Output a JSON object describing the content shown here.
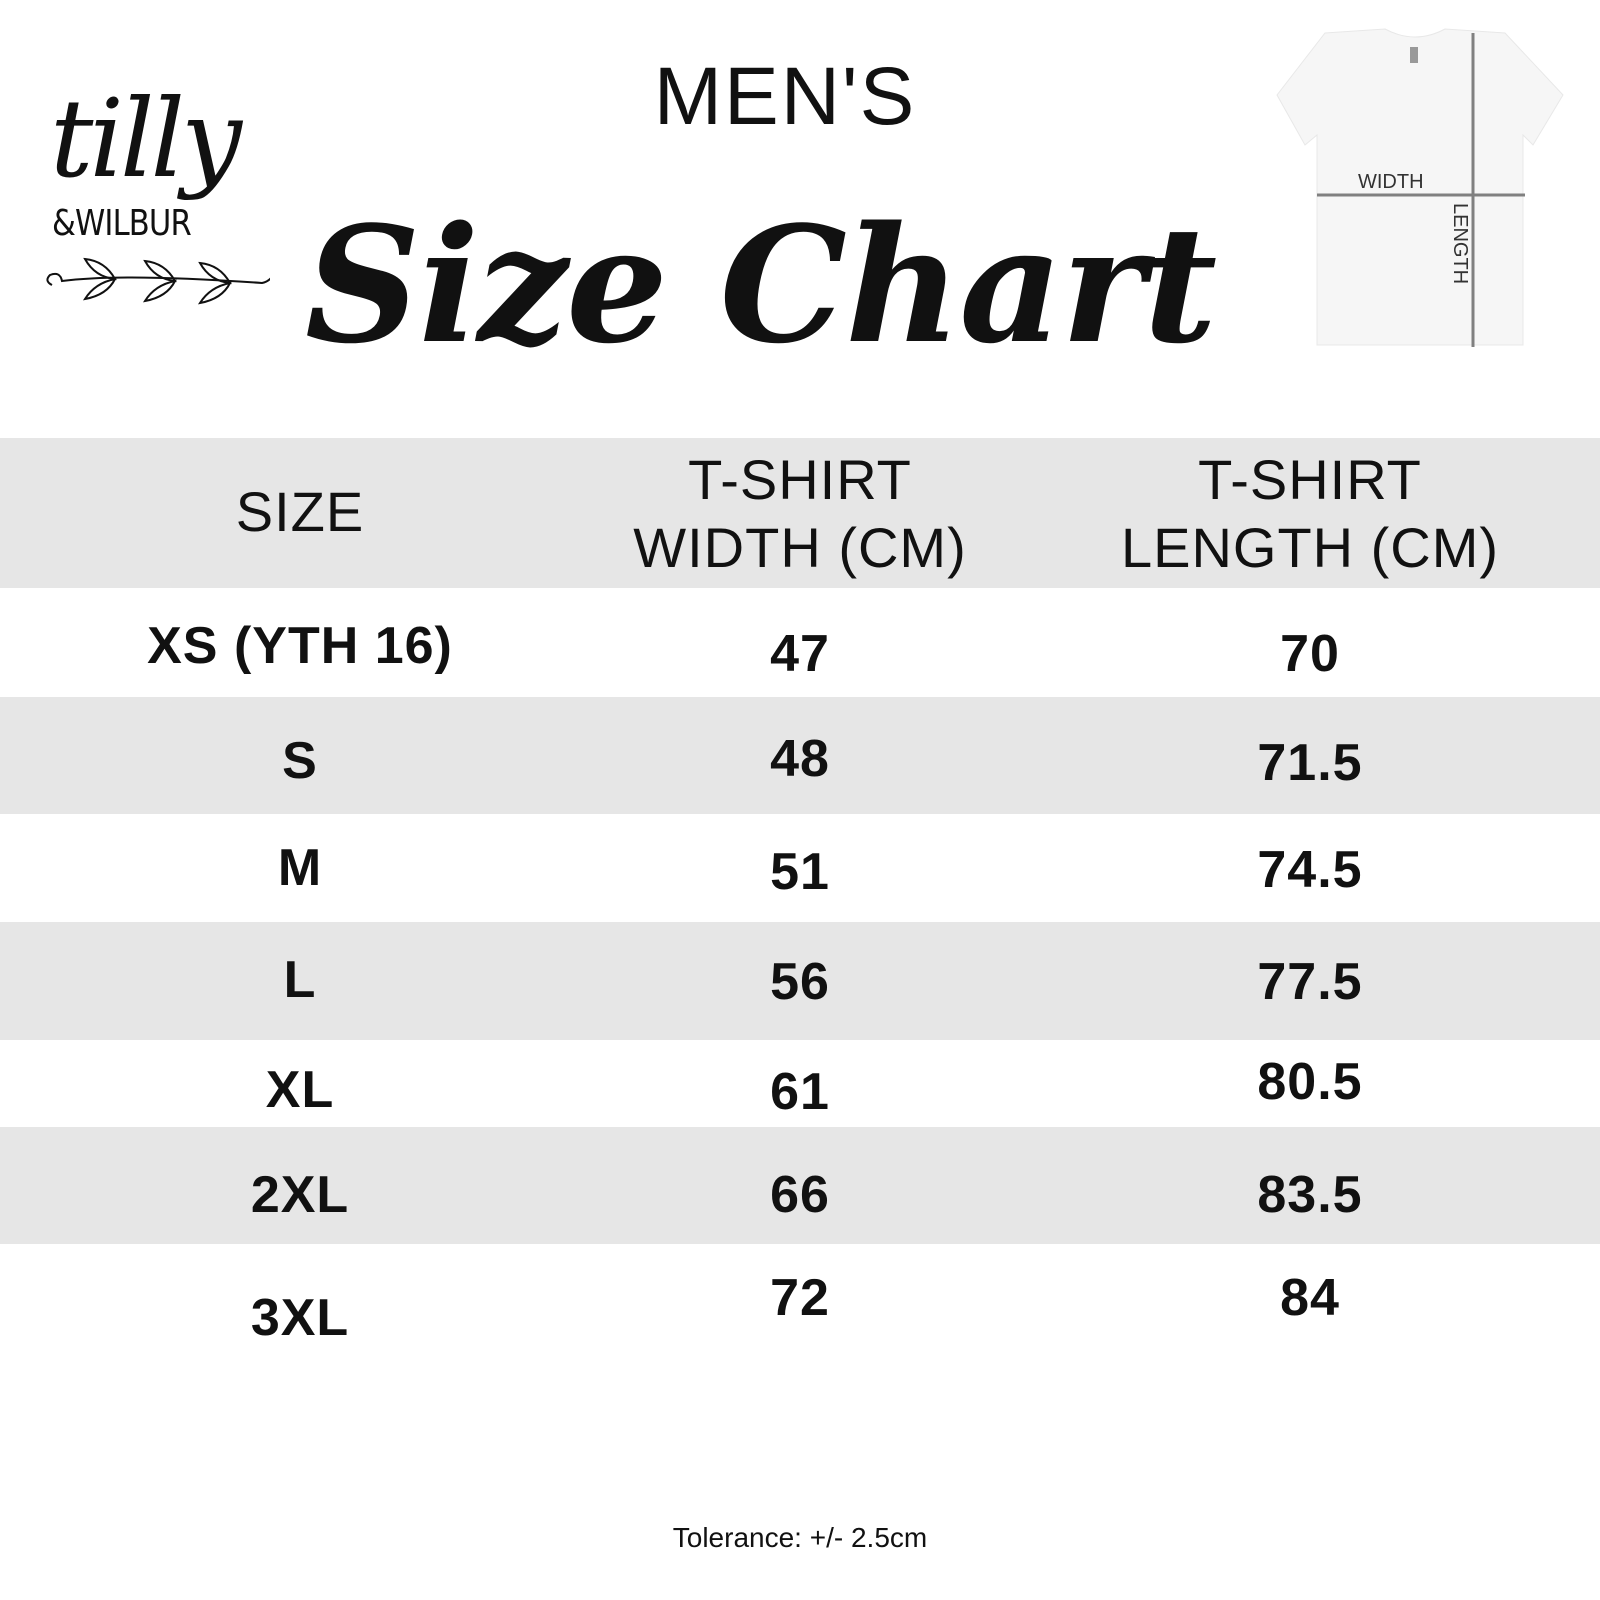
{
  "brand": {
    "logo_text": "tilly & WILBUR"
  },
  "header": {
    "subtitle": "MEN'S",
    "title": "Size Chart"
  },
  "diagram": {
    "width_label": "WIDTH",
    "length_label": "LENGTH"
  },
  "table": {
    "columns": [
      "SIZE",
      "T-SHIRT WIDTH (CM)",
      "T-SHIRT LENGTH (CM)"
    ],
    "column_lines": [
      [
        "SIZE"
      ],
      [
        "T-SHIRT",
        "WIDTH (CM)"
      ],
      [
        "T-SHIRT",
        "LENGTH (CM)"
      ]
    ],
    "rows": [
      [
        "XS (YTH 16)",
        "47",
        "70"
      ],
      [
        "S",
        "48",
        "71.5"
      ],
      [
        "M",
        "51",
        "74.5"
      ],
      [
        "L",
        "56",
        "77.5"
      ],
      [
        "XL",
        "61",
        "80.5"
      ],
      [
        "2XL",
        "66",
        "83.5"
      ],
      [
        "3XL",
        "72",
        "84"
      ]
    ]
  },
  "footer": {
    "tolerance": "Tolerance: +/- 2.5cm"
  },
  "colors": {
    "row_stripe": "#e6e6e6",
    "text": "#111111",
    "diagram_line": "#808080"
  }
}
